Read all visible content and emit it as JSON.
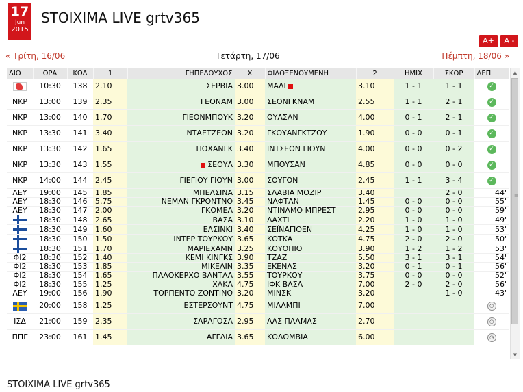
{
  "date_badge": {
    "day": "17",
    "month": "Jun",
    "year": "2015"
  },
  "page_title": "STOIXIMA LIVE grtv365",
  "font_controls": {
    "increase": "A+",
    "decrease": "A -"
  },
  "nav": {
    "prev": "« Τρίτη, 16/06",
    "current": "Τετάρτη, 17/06",
    "next": "Πέμπτη, 18/06 »"
  },
  "columns": {
    "league": "ΔΙΟ",
    "time": "ΩΡΑ",
    "code": "ΚΩΔ",
    "odd1": "1",
    "home": "ΓΗΠΕΔΟΥΧΟΣ",
    "oddx": "Χ",
    "away": "ΦΙΛΟΞΕΝΟΥΜΕΝΗ",
    "odd2": "2",
    "half": "ΗΜΙΧ",
    "score": "ΣΚΟΡ",
    "minute": "ΛΕΠ"
  },
  "rows": [
    {
      "league": "",
      "league_icon": "world-cup-icon",
      "time": "10:30",
      "code": "138",
      "odd1": "2.10",
      "home": "ΣΕΡΒΙΑ",
      "home_card": false,
      "oddx": "3.00",
      "away": "ΜΑΛΙ",
      "away_card": true,
      "odd2": "3.10",
      "half": "1 - 1",
      "score": "1 - 1",
      "minute": "",
      "status_icon": "check-icon",
      "tall": true
    },
    {
      "league": "ΝΚΡ",
      "league_icon": "",
      "time": "13:00",
      "code": "139",
      "odd1": "2.35",
      "home": "ΓΕΟΝΑΜ",
      "home_card": false,
      "oddx": "3.00",
      "away": "ΣΕΟΝΓΚΝΑΜ",
      "away_card": false,
      "odd2": "2.55",
      "half": "1 - 1",
      "score": "2 - 1",
      "minute": "",
      "status_icon": "check-icon",
      "tall": true
    },
    {
      "league": "ΝΚΡ",
      "league_icon": "",
      "time": "13:00",
      "code": "140",
      "odd1": "1.70",
      "home": "ΓΙΕΟΝΜΠΟΥΚ",
      "home_card": false,
      "oddx": "3.20",
      "away": "ΟΥΛΣΑΝ",
      "away_card": false,
      "odd2": "4.00",
      "half": "0 - 1",
      "score": "2 - 1",
      "minute": "",
      "status_icon": "check-icon",
      "tall": true
    },
    {
      "league": "ΝΚΡ",
      "league_icon": "",
      "time": "13:30",
      "code": "141",
      "odd1": "3.40",
      "home": "ΝΤΑΕΤΖΕΟΝ",
      "home_card": false,
      "oddx": "3.20",
      "away": "ΓΚΟΥΑΝΓΚΤΖΟΥ",
      "away_card": false,
      "odd2": "1.90",
      "half": "0 - 0",
      "score": "0 - 1",
      "minute": "",
      "status_icon": "check-icon",
      "tall": true
    },
    {
      "league": "ΝΚΡ",
      "league_icon": "",
      "time": "13:30",
      "code": "142",
      "odd1": "1.65",
      "home": "ΠΟΧΑΝΓΚ",
      "home_card": false,
      "oddx": "3.40",
      "away": "ΙΝΤΣΕΟΝ ΓΙΟΥΝ",
      "away_card": false,
      "odd2": "4.00",
      "half": "0 - 0",
      "score": "0 - 2",
      "minute": "",
      "status_icon": "check-icon",
      "tall": true
    },
    {
      "league": "ΝΚΡ",
      "league_icon": "",
      "time": "13:30",
      "code": "143",
      "odd1": "1.55",
      "home": "ΣΕΟΥΛ",
      "home_card": true,
      "oddx": "3.30",
      "away": "ΜΠΟΥΣΑΝ",
      "away_card": false,
      "odd2": "4.85",
      "half": "0 - 0",
      "score": "0 - 0",
      "minute": "",
      "status_icon": "check-icon",
      "tall": true
    },
    {
      "league": "ΝΚΡ",
      "league_icon": "",
      "time": "14:00",
      "code": "144",
      "odd1": "2.45",
      "home": "ΓΙΕΓΙΟΥ ΓΙΟΥΝ",
      "home_card": false,
      "oddx": "3.00",
      "away": "ΣΟΥΓΟΝ",
      "away_card": false,
      "odd2": "2.45",
      "half": "1 - 1",
      "score": "3 - 4",
      "minute": "",
      "status_icon": "check-icon",
      "tall": true
    },
    {
      "league": "ΛΕΥ",
      "league_icon": "",
      "time": "19:00",
      "code": "145",
      "odd1": "1.85",
      "home": "ΜΠΕΛΣΙΝΑ",
      "home_card": false,
      "oddx": "3.15",
      "away": "ΣΛΑΒΙΑ ΜΟΖΙΡ",
      "away_card": false,
      "odd2": "3.40",
      "half": "",
      "score": "2 - 0",
      "minute": "44'",
      "status_icon": "",
      "tall": false
    },
    {
      "league": "ΛΕΥ",
      "league_icon": "",
      "time": "18:30",
      "code": "146",
      "odd1": "5.75",
      "home": "ΝΕΜΑΝ ΓΚΡΟΝΤΝΟ",
      "home_card": false,
      "oddx": "3.45",
      "away": "ΝΑΦΤΑΝ",
      "away_card": false,
      "odd2": "1.45",
      "half": "0 - 0",
      "score": "0 - 0",
      "minute": "55'",
      "status_icon": "",
      "tall": false
    },
    {
      "league": "ΛΕΥ",
      "league_icon": "",
      "time": "18:30",
      "code": "147",
      "odd1": "2.00",
      "home": "ΓΚΟΜΕΛ",
      "home_card": false,
      "oddx": "3.20",
      "away": "ΝΤΙΝΑΜΟ ΜΠΡΕΣΤ",
      "away_card": false,
      "odd2": "2.95",
      "half": "0 - 0",
      "score": "0 - 0",
      "minute": "59'",
      "status_icon": "",
      "tall": false
    },
    {
      "league": "",
      "league_icon": "finland-flag-icon",
      "time": "18:30",
      "code": "148",
      "odd1": "2.65",
      "home": "ΒΑΣΑ",
      "home_card": false,
      "oddx": "3.10",
      "away": "ΛΑΧΤΙ",
      "away_card": false,
      "odd2": "2.20",
      "half": "1 - 0",
      "score": "1 - 0",
      "minute": "49'",
      "status_icon": "",
      "tall": false
    },
    {
      "league": "",
      "league_icon": "finland-flag-icon",
      "time": "18:30",
      "code": "149",
      "odd1": "1.60",
      "home": "ΕΛΣΙΝΚΙ",
      "home_card": false,
      "oddx": "3.40",
      "away": "ΣΕΪΝΑΓΙΟΕΝ",
      "away_card": false,
      "odd2": "4.25",
      "half": "1 - 0",
      "score": "1 - 0",
      "minute": "53'",
      "status_icon": "",
      "tall": false
    },
    {
      "league": "",
      "league_icon": "finland-flag-icon",
      "time": "18:30",
      "code": "150",
      "odd1": "1.50",
      "home": "ΙΝΤΕΡ ΤΟΥΡΚΟΥ",
      "home_card": false,
      "oddx": "3.65",
      "away": "ΚΟΤΚΑ",
      "away_card": false,
      "odd2": "4.75",
      "half": "2 - 0",
      "score": "2 - 0",
      "minute": "50'",
      "status_icon": "",
      "tall": false
    },
    {
      "league": "",
      "league_icon": "finland-flag-icon",
      "time": "18:30",
      "code": "151",
      "odd1": "1.70",
      "home": "ΜΑΡΙΕΧΑΜΝ",
      "home_card": false,
      "oddx": "3.25",
      "away": "ΚΟΥΟΠΙΟ",
      "away_card": false,
      "odd2": "3.90",
      "half": "1 - 2",
      "score": "1 - 2",
      "minute": "53'",
      "status_icon": "",
      "tall": false
    },
    {
      "league": "ΦΙ2",
      "league_icon": "",
      "time": "18:30",
      "code": "152",
      "odd1": "1.40",
      "home": "ΚΕΜΙ ΚΙΝΓΚΣ",
      "home_card": false,
      "oddx": "3.90",
      "away": "ΤΖΑΖ",
      "away_card": false,
      "odd2": "5.50",
      "half": "3 - 1",
      "score": "3 - 1",
      "minute": "54'",
      "status_icon": "",
      "tall": false
    },
    {
      "league": "ΦΙ2",
      "league_icon": "",
      "time": "18:30",
      "code": "153",
      "odd1": "1.85",
      "home": "ΜΙΚΕΛΙΝ",
      "home_card": false,
      "oddx": "3.35",
      "away": "ΕΚΕΝΑΣ",
      "away_card": false,
      "odd2": "3.20",
      "half": "0 - 1",
      "score": "0 - 1",
      "minute": "56'",
      "status_icon": "",
      "tall": false
    },
    {
      "league": "ΦΙ2",
      "league_icon": "",
      "time": "18:30",
      "code": "154",
      "odd1": "1.65",
      "home": "ΠΑΛΟΚΕΡΧΟ ΒΑΝΤΑΑ",
      "home_card": false,
      "oddx": "3.55",
      "away": "ΤΟΥΡΚΟΥ",
      "away_card": false,
      "odd2": "3.75",
      "half": "0 - 0",
      "score": "0 - 0",
      "minute": "52'",
      "status_icon": "",
      "tall": false
    },
    {
      "league": "ΦΙ2",
      "league_icon": "",
      "time": "18:30",
      "code": "155",
      "odd1": "1.25",
      "home": "ΧΑΚΑ",
      "home_card": false,
      "oddx": "4.75",
      "away": "ΙΦΚ ΒΑΣΑ",
      "away_card": false,
      "odd2": "7.00",
      "half": "2 - 0",
      "score": "2 - 0",
      "minute": "56'",
      "status_icon": "",
      "tall": false
    },
    {
      "league": "ΛΕΥ",
      "league_icon": "",
      "time": "19:00",
      "code": "156",
      "odd1": "1.90",
      "home": "ΤΟΡΠΕΝΤΟ ΖΟΝΤΙΝΟ",
      "home_card": false,
      "oddx": "3.20",
      "away": "ΜΙΝΣΚ",
      "away_card": false,
      "odd2": "3.20",
      "half": "",
      "score": "1 - 0",
      "minute": "43'",
      "status_icon": "",
      "tall": false
    },
    {
      "league": "",
      "league_icon": "sweden-flag-icon",
      "time": "20:00",
      "code": "158",
      "odd1": "1.25",
      "home": "ΕΣΤΕΡΣΟΥΝΤ",
      "home_card": false,
      "oddx": "4.75",
      "away": "ΜΙΑΛΜΠΙ",
      "away_card": false,
      "odd2": "7.00",
      "half": "",
      "score": "",
      "minute": "",
      "status_icon": "clock-icon",
      "tall": true
    },
    {
      "league": "ΙΣΔ",
      "league_icon": "",
      "time": "21:00",
      "code": "159",
      "odd1": "2.35",
      "home": "ΣΑΡΑΓΟΣΑ",
      "home_card": false,
      "oddx": "2.95",
      "away": "ΛΑΣ ΠΑΛΜΑΣ",
      "away_card": false,
      "odd2": "2.70",
      "half": "",
      "score": "",
      "minute": "",
      "status_icon": "clock-icon",
      "tall": true
    },
    {
      "league": "ΠΠΓ",
      "league_icon": "",
      "time": "23:00",
      "code": "161",
      "odd1": "1.45",
      "home": "ΑΓΓΛΙΑ",
      "home_card": false,
      "oddx": "3.65",
      "away": "ΚΟΛΟΜΒΙΑ",
      "away_card": false,
      "odd2": "6.00",
      "half": "",
      "score": "",
      "minute": "",
      "status_icon": "clock-icon",
      "tall": true
    }
  ],
  "footer_text": "STOIXIMA LIVE grtv365"
}
